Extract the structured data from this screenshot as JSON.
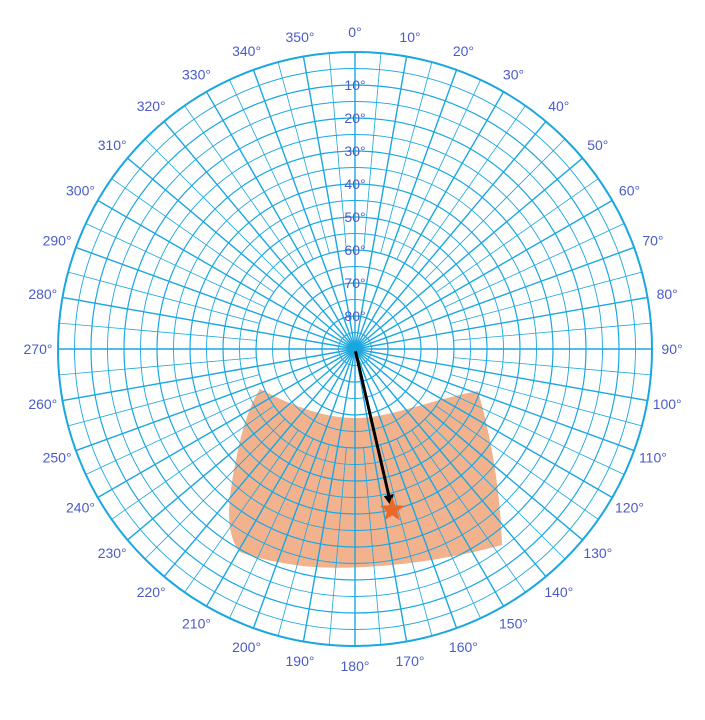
{
  "diagram": {
    "type": "polar-sky-plot",
    "azimuth_labels": [
      "0°",
      "10°",
      "20°",
      "30°",
      "40°",
      "50°",
      "60°",
      "70°",
      "80°",
      "90°",
      "100°",
      "110°",
      "120°",
      "130°",
      "140°",
      "150°",
      "160°",
      "170°",
      "180°",
      "190°",
      "200°",
      "210°",
      "220°",
      "230°",
      "240°",
      "250°",
      "260°",
      "270°",
      "280°",
      "290°",
      "300°",
      "310°",
      "320°",
      "330°",
      "340°",
      "350°"
    ],
    "elevation_labels": [
      "10°",
      "20°",
      "30°",
      "40°",
      "50°",
      "60°",
      "70°",
      "80°"
    ],
    "elevation_values": [
      10,
      20,
      30,
      40,
      50,
      60,
      70,
      80
    ],
    "target": {
      "azimuth": 167,
      "elevation": 40
    },
    "colors": {
      "grid": "#1aa7e0",
      "label": "#4a5bc8",
      "region": "#f0a77e",
      "arrow": "#000000",
      "star": "#e8692a"
    }
  }
}
